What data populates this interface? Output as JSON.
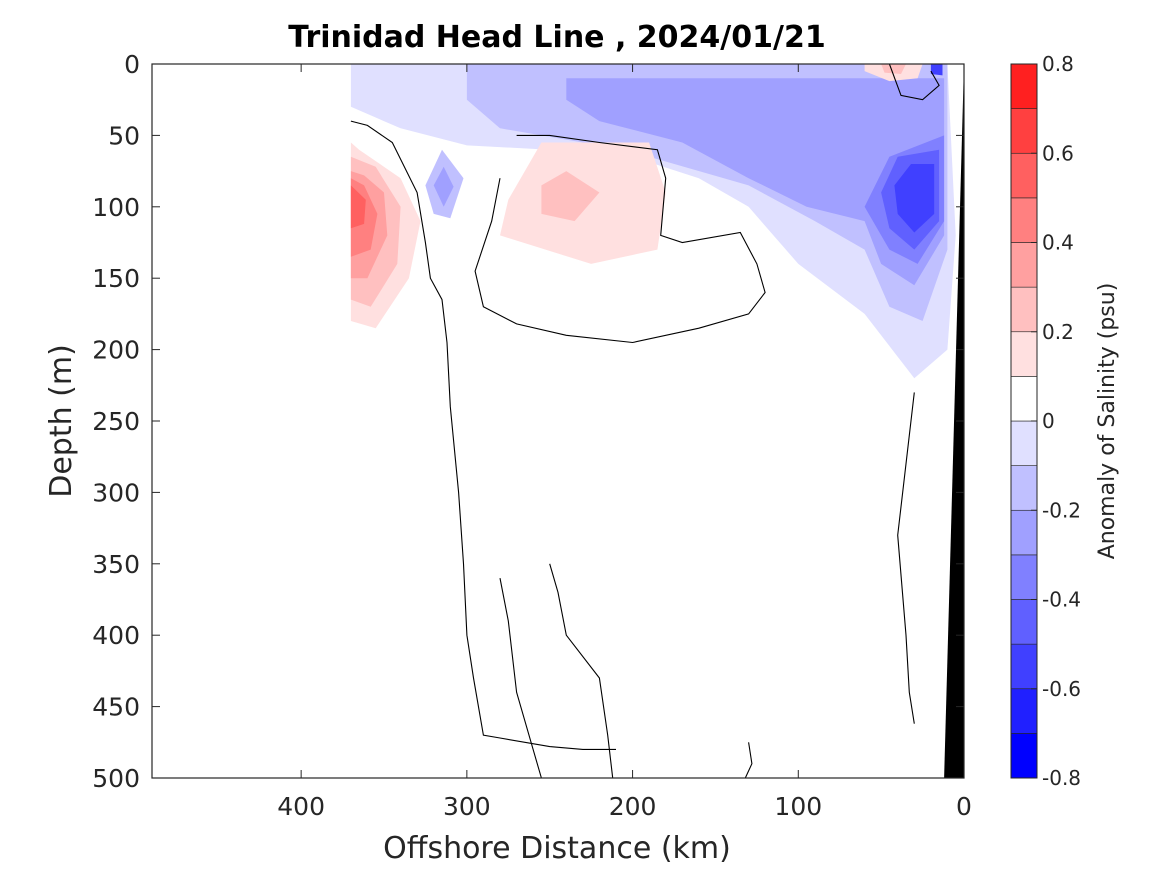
{
  "chart_data": {
    "type": "heatmap",
    "title": "Trinidad Head Line , 2024/01/21",
    "xlabel": "Offshore Distance (km)",
    "ylabel": "Depth (m)",
    "colorbar_label": "Anomaly of Salinity (psu)",
    "xlim": [
      490,
      0
    ],
    "ylim": [
      0,
      500
    ],
    "y_reversed": true,
    "x_reversed": true,
    "x_ticks": [
      400,
      300,
      200,
      100,
      0
    ],
    "y_ticks": [
      0,
      50,
      100,
      150,
      200,
      250,
      300,
      350,
      400,
      450,
      500
    ],
    "colorbar_ticks": [
      "-0.8",
      "-0.6",
      "-0.4",
      "-0.2",
      "0",
      "0.2",
      "0.4",
      "0.6",
      "0.8"
    ],
    "colorbar_levels": [
      -0.8,
      -0.7,
      -0.6,
      -0.5,
      -0.4,
      -0.3,
      -0.2,
      -0.1,
      0,
      0.1,
      0.2,
      0.3,
      0.4,
      0.5,
      0.6,
      0.7,
      0.8
    ],
    "colorbar_colors": [
      "#0000ff",
      "#2020ff",
      "#4040ff",
      "#6060ff",
      "#8080ff",
      "#a0a0ff",
      "#c0c0ff",
      "#e0e0ff",
      "#ffffff",
      "#ffffff",
      "#ffe0e0",
      "#ffc0c0",
      "#ffa0a0",
      "#ff8080",
      "#ff6060",
      "#ff4040",
      "#ff2020",
      "#ff0000"
    ],
    "data_extent_km": [
      370,
      0
    ],
    "bathymetry_color": "#000000",
    "bathymetry": [
      {
        "x": 0,
        "y": 0
      },
      {
        "x": 12,
        "y": 500
      },
      {
        "x": 0,
        "y": 500
      }
    ],
    "anomaly_regions": [
      {
        "level": -0.1,
        "points": [
          [
            370,
            0
          ],
          [
            10,
            0
          ],
          [
            5,
            120
          ],
          [
            10,
            200
          ],
          [
            30,
            220
          ],
          [
            60,
            175
          ],
          [
            100,
            140
          ],
          [
            130,
            100
          ],
          [
            160,
            80
          ],
          [
            200,
            65
          ],
          [
            250,
            60
          ],
          [
            300,
            57
          ],
          [
            340,
            45
          ],
          [
            370,
            30
          ]
        ]
      },
      {
        "level": -0.2,
        "points": [
          [
            300,
            0
          ],
          [
            10,
            0
          ],
          [
            10,
            130
          ],
          [
            25,
            180
          ],
          [
            45,
            170
          ],
          [
            60,
            130
          ],
          [
            90,
            110
          ],
          [
            130,
            85
          ],
          [
            190,
            65
          ],
          [
            230,
            55
          ],
          [
            280,
            45
          ],
          [
            300,
            25
          ]
        ]
      },
      {
        "level": -0.2,
        "points": [
          [
            325,
            85
          ],
          [
            315,
            60
          ],
          [
            302,
            80
          ],
          [
            310,
            108
          ],
          [
            320,
            105
          ]
        ]
      },
      {
        "level": -0.3,
        "points": [
          [
            240,
            10
          ],
          [
            12,
            10
          ],
          [
            12,
            120
          ],
          [
            30,
            155
          ],
          [
            50,
            140
          ],
          [
            60,
            110
          ],
          [
            95,
            100
          ],
          [
            130,
            80
          ],
          [
            170,
            55
          ],
          [
            220,
            40
          ],
          [
            240,
            25
          ]
        ]
      },
      {
        "level": -0.3,
        "points": [
          [
            320,
            85
          ],
          [
            314,
            72
          ],
          [
            308,
            86
          ],
          [
            314,
            100
          ]
        ]
      },
      {
        "level": -0.4,
        "points": [
          [
            12,
            50
          ],
          [
            12,
            110
          ],
          [
            28,
            140
          ],
          [
            45,
            130
          ],
          [
            60,
            100
          ],
          [
            45,
            65
          ]
        ]
      },
      {
        "level": -0.5,
        "points": [
          [
            15,
            60
          ],
          [
            15,
            110
          ],
          [
            30,
            130
          ],
          [
            45,
            115
          ],
          [
            50,
            90
          ],
          [
            40,
            65
          ]
        ]
      },
      {
        "level": -0.6,
        "points": [
          [
            18,
            70
          ],
          [
            18,
            105
          ],
          [
            30,
            118
          ],
          [
            40,
            105
          ],
          [
            42,
            85
          ],
          [
            32,
            70
          ]
        ]
      },
      {
        "level": -0.6,
        "points": [
          [
            20,
            0
          ],
          [
            13,
            0
          ],
          [
            13,
            8
          ],
          [
            20,
            7
          ]
        ]
      },
      {
        "level": 0.1,
        "points": [
          [
            370,
            55
          ],
          [
            370,
            180
          ],
          [
            355,
            185
          ],
          [
            335,
            150
          ],
          [
            328,
            110
          ],
          [
            340,
            80
          ],
          [
            365,
            60
          ]
        ]
      },
      {
        "level": 0.1,
        "points": [
          [
            255,
            55
          ],
          [
            190,
            55
          ],
          [
            180,
            90
          ],
          [
            185,
            130
          ],
          [
            225,
            140
          ],
          [
            280,
            120
          ],
          [
            275,
            95
          ]
        ]
      },
      {
        "level": 0.1,
        "points": [
          [
            60,
            0
          ],
          [
            25,
            0
          ],
          [
            28,
            10
          ],
          [
            45,
            12
          ],
          [
            60,
            5
          ]
        ]
      },
      {
        "level": 0.2,
        "points": [
          [
            370,
            65
          ],
          [
            370,
            165
          ],
          [
            358,
            170
          ],
          [
            342,
            140
          ],
          [
            340,
            100
          ],
          [
            355,
            72
          ]
        ]
      },
      {
        "level": 0.2,
        "points": [
          [
            240,
            75
          ],
          [
            220,
            90
          ],
          [
            235,
            110
          ],
          [
            255,
            105
          ],
          [
            255,
            85
          ]
        ]
      },
      {
        "level": 0.2,
        "points": [
          [
            50,
            0
          ],
          [
            35,
            0
          ],
          [
            38,
            7
          ],
          [
            48,
            6
          ]
        ]
      },
      {
        "level": 0.3,
        "points": [
          [
            370,
            75
          ],
          [
            370,
            150
          ],
          [
            360,
            150
          ],
          [
            348,
            120
          ],
          [
            350,
            90
          ],
          [
            362,
            78
          ]
        ]
      },
      {
        "level": 0.4,
        "points": [
          [
            370,
            80
          ],
          [
            370,
            135
          ],
          [
            358,
            130
          ],
          [
            354,
            105
          ],
          [
            362,
            85
          ]
        ]
      },
      {
        "level": 0.5,
        "points": [
          [
            370,
            85
          ],
          [
            370,
            115
          ],
          [
            362,
            112
          ],
          [
            361,
            95
          ]
        ]
      }
    ],
    "zero_contours": [
      [
        [
          370,
          40
        ],
        [
          360,
          43
        ],
        [
          345,
          55
        ],
        [
          330,
          90
        ],
        [
          325,
          125
        ],
        [
          322,
          150
        ],
        [
          315,
          165
        ],
        [
          312,
          195
        ],
        [
          310,
          240
        ],
        [
          305,
          300
        ],
        [
          302,
          350
        ],
        [
          300,
          400
        ],
        [
          296,
          430
        ],
        [
          290,
          470
        ],
        [
          280,
          472
        ],
        [
          250,
          478
        ],
        [
          230,
          480
        ],
        [
          210,
          480
        ]
      ],
      [
        [
          270,
          50
        ],
        [
          250,
          50
        ],
        [
          220,
          55
        ],
        [
          185,
          60
        ],
        [
          180,
          80
        ],
        [
          183,
          120
        ],
        [
          170,
          125
        ],
        [
          135,
          118
        ],
        [
          125,
          140
        ],
        [
          120,
          160
        ],
        [
          130,
          175
        ],
        [
          160,
          185
        ],
        [
          200,
          195
        ],
        [
          240,
          190
        ],
        [
          270,
          182
        ],
        [
          290,
          170
        ],
        [
          295,
          145
        ],
        [
          285,
          110
        ],
        [
          280,
          80
        ]
      ],
      [
        [
          280,
          360
        ],
        [
          275,
          390
        ],
        [
          270,
          440
        ],
        [
          260,
          480
        ],
        [
          255,
          500
        ]
      ],
      [
        [
          250,
          350
        ],
        [
          245,
          370
        ],
        [
          240,
          400
        ],
        [
          220,
          430
        ],
        [
          215,
          470
        ],
        [
          212,
          500
        ]
      ],
      [
        [
          45,
          0
        ],
        [
          38,
          22
        ],
        [
          25,
          25
        ],
        [
          15,
          15
        ],
        [
          20,
          5
        ]
      ],
      [
        [
          30,
          230
        ],
        [
          35,
          280
        ],
        [
          40,
          330
        ],
        [
          35,
          400
        ],
        [
          33,
          440
        ],
        [
          30,
          462
        ]
      ],
      [
        [
          130,
          475
        ],
        [
          128,
          490
        ],
        [
          132,
          500
        ]
      ]
    ]
  }
}
